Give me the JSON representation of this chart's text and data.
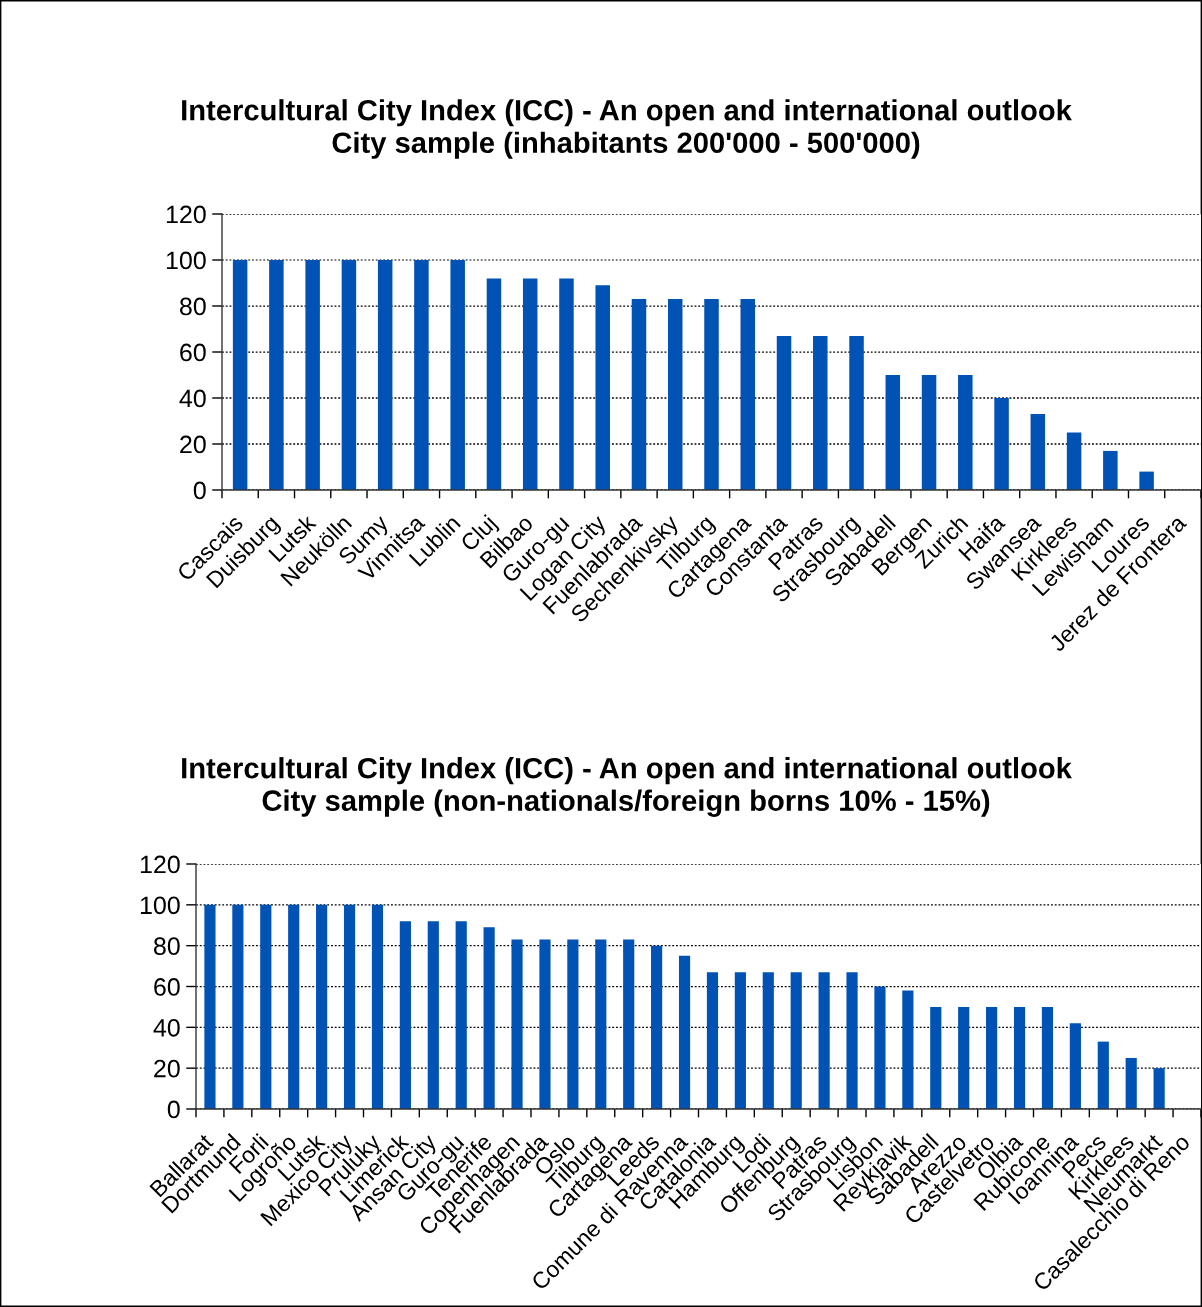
{
  "chart_data": [
    {
      "type": "bar",
      "title": "Intercultural City Index (ICC) - An open and international outlook\nCity sample (inhabitants 200'000 - 500'000)",
      "categories": [
        "Cascais",
        "Duisburg",
        "Lutsk",
        "Neukölln",
        "Sumy",
        "Vinnitsa",
        "Lublin",
        "Cluj",
        "Bilbao",
        "Guro-gu",
        "Logan City",
        "Fuenlabrada",
        "Sechenkivsky",
        "Tilburg",
        "Cartagena",
        "Constanta",
        "Patras",
        "Strasbourg",
        "Sabadell",
        "Bergen",
        "Zurich",
        "Haifa",
        "Swansea",
        "Kirklees",
        "Lewisham",
        "Loures",
        "Jerez de Frontera"
      ],
      "values": [
        100,
        100,
        100,
        100,
        100,
        100,
        100,
        92,
        92,
        92,
        89,
        83,
        83,
        83,
        83,
        67,
        67,
        67,
        50,
        50,
        50,
        40,
        33,
        25,
        17,
        8,
        0
      ],
      "color": "#0052b4",
      "ylim": [
        0,
        120
      ],
      "yticks": [
        0,
        20,
        40,
        60,
        80,
        100,
        120
      ],
      "grid": "y"
    },
    {
      "type": "bar",
      "title": "Intercultural City Index (ICC) - An open and international outlook\nCity sample (non-nationals/foreign borns 10% - 15%)",
      "categories": [
        "Ballarat",
        "Dortmund",
        "Forli",
        "Logroño",
        "Lutsk",
        "Mexico City",
        "Pruluky",
        "Limerick",
        "Ansan City",
        "Guro-gu",
        "Tenerife",
        "Copenhagen",
        "Fuenlabrada",
        "Oslo",
        "Tilburg",
        "Cartagena",
        "Leeds",
        "Comune di Ravenna",
        "Catalonia",
        "Hamburg",
        "Lodi",
        "Offenburg",
        "Patras",
        "Strasbourg",
        "Lisbon",
        "Reykjavik",
        "Sabadell",
        "Arezzo",
        "Castelvetro",
        "Olbia",
        "Rubicone",
        "Ioannina",
        "Pecs",
        "Kirklees",
        "Neumarkt",
        "Casalecchio di Reno"
      ],
      "values": [
        100,
        100,
        100,
        100,
        100,
        100,
        100,
        92,
        92,
        92,
        89,
        83,
        83,
        83,
        83,
        83,
        80,
        75,
        67,
        67,
        67,
        67,
        67,
        67,
        60,
        58,
        50,
        50,
        50,
        50,
        50,
        42,
        33,
        25,
        20,
        0
      ],
      "color": "#0052b4",
      "ylim": [
        0,
        120
      ],
      "yticks": [
        0,
        20,
        40,
        60,
        80,
        100,
        120
      ],
      "grid": "y"
    }
  ]
}
